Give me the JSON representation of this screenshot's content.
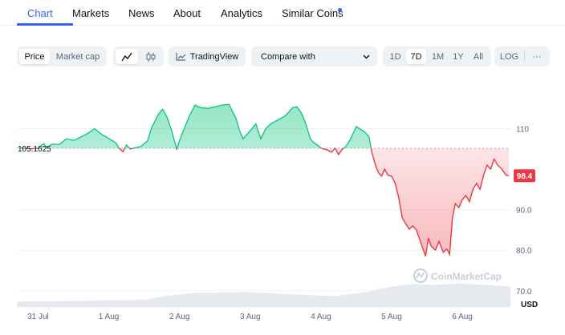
{
  "tabs": [
    {
      "label": "Chart",
      "active": true
    },
    {
      "label": "Markets"
    },
    {
      "label": "News"
    },
    {
      "label": "About"
    },
    {
      "label": "Analytics"
    },
    {
      "label": "Similar Coins"
    }
  ],
  "toolbar": {
    "price_label": "Price",
    "market_cap_label": "Market cap",
    "line_icon": "line-chart-icon",
    "candle_icon": "candlestick-icon",
    "tradingview_label": "TradingView",
    "compare_label": "Compare with",
    "ranges": [
      "1D",
      "7D",
      "1M",
      "1Y",
      "All"
    ],
    "active_range": "7D",
    "log_label": "LOG",
    "more_label": "···"
  },
  "chart_data": {
    "type": "area",
    "baseline": 105.1625,
    "baseline_label": "105.1625",
    "current_value": 98.4,
    "current_label": "98.4",
    "up_color": "#16c784",
    "down_color": "#ea3943",
    "currency_label": "USD",
    "watermark": "CoinMarketCap",
    "ylim": [
      66,
      120
    ],
    "y_ticks": [
      {
        "value": 110,
        "label": "110"
      },
      {
        "value": 90,
        "label": "90.0"
      },
      {
        "value": 80,
        "label": "80.0"
      },
      {
        "value": 70,
        "label": "70.0"
      }
    ],
    "x_ticks": [
      "31 Jul",
      "1 Aug",
      "2 Aug",
      "3 Aug",
      "4 Aug",
      "5 Aug",
      "6 Aug"
    ],
    "x_range_days": [
      -0.3,
      6.68
    ],
    "price": [
      [
        -0.25,
        105.3
      ],
      [
        -0.1,
        105.0
      ],
      [
        0.0,
        105.2
      ],
      [
        0.08,
        106.3
      ],
      [
        0.12,
        105.4
      ],
      [
        0.2,
        106.2
      ],
      [
        0.3,
        106.1
      ],
      [
        0.4,
        107.5
      ],
      [
        0.5,
        107.1
      ],
      [
        0.6,
        107.9
      ],
      [
        0.7,
        108.8
      ],
      [
        0.8,
        110.0
      ],
      [
        0.9,
        108.6
      ],
      [
        1.0,
        107.6
      ],
      [
        1.1,
        106.5
      ],
      [
        1.15,
        105.1
      ],
      [
        1.2,
        104.3
      ],
      [
        1.25,
        106.0
      ],
      [
        1.3,
        105.0
      ],
      [
        1.45,
        105.6
      ],
      [
        1.55,
        107.0
      ],
      [
        1.6,
        110.0
      ],
      [
        1.7,
        113.5
      ],
      [
        1.76,
        114.8
      ],
      [
        1.82,
        113.0
      ],
      [
        1.88,
        110.0
      ],
      [
        1.92,
        107.5
      ],
      [
        1.96,
        105.0
      ],
      [
        2.02,
        108.0
      ],
      [
        2.1,
        111.5
      ],
      [
        2.15,
        113.5
      ],
      [
        2.22,
        115.8
      ],
      [
        2.3,
        115.2
      ],
      [
        2.4,
        115.0
      ],
      [
        2.5,
        115.4
      ],
      [
        2.6,
        115.8
      ],
      [
        2.7,
        116.0
      ],
      [
        2.8,
        112.5
      ],
      [
        2.85,
        109.5
      ],
      [
        2.9,
        107.5
      ],
      [
        3.0,
        109.5
      ],
      [
        3.08,
        111.2
      ],
      [
        3.15,
        107.5
      ],
      [
        3.22,
        110.0
      ],
      [
        3.3,
        111.3
      ],
      [
        3.4,
        112.2
      ],
      [
        3.5,
        113.2
      ],
      [
        3.6,
        115.2
      ],
      [
        3.66,
        115.4
      ],
      [
        3.72,
        114.0
      ],
      [
        3.78,
        111.5
      ],
      [
        3.85,
        107.5
      ],
      [
        3.9,
        106.5
      ],
      [
        3.95,
        106.0
      ],
      [
        4.0,
        105.2
      ],
      [
        4.08,
        104.8
      ],
      [
        4.15,
        104.2
      ],
      [
        4.2,
        105.2
      ],
      [
        4.25,
        103.6
      ],
      [
        4.3,
        104.9
      ],
      [
        4.35,
        105.5
      ],
      [
        4.42,
        107.5
      ],
      [
        4.5,
        110.5
      ],
      [
        4.55,
        110.0
      ],
      [
        4.62,
        109.2
      ],
      [
        4.68,
        108.0
      ],
      [
        4.72,
        104.2
      ],
      [
        4.78,
        100.5
      ],
      [
        4.82,
        99.0
      ],
      [
        4.86,
        98.3
      ],
      [
        4.9,
        100.0
      ],
      [
        4.95,
        98.5
      ],
      [
        5.0,
        98.3
      ],
      [
        5.05,
        96.5
      ],
      [
        5.1,
        93.0
      ],
      [
        5.15,
        88.0
      ],
      [
        5.2,
        86.5
      ],
      [
        5.25,
        85.2
      ],
      [
        5.3,
        86.0
      ],
      [
        5.35,
        85.0
      ],
      [
        5.42,
        81.5
      ],
      [
        5.48,
        78.5
      ],
      [
        5.52,
        83.0
      ],
      [
        5.56,
        81.0
      ],
      [
        5.62,
        80.0
      ],
      [
        5.67,
        82.2
      ],
      [
        5.73,
        79.5
      ],
      [
        5.78,
        80.3
      ],
      [
        5.82,
        79.0
      ],
      [
        5.86,
        88.0
      ],
      [
        5.9,
        91.5
      ],
      [
        5.95,
        90.5
      ],
      [
        6.0,
        92.5
      ],
      [
        6.05,
        93.5
      ],
      [
        6.1,
        92.0
      ],
      [
        6.15,
        95.0
      ],
      [
        6.2,
        96.5
      ],
      [
        6.25,
        95.0
      ],
      [
        6.3,
        98.5
      ],
      [
        6.35,
        101.0
      ],
      [
        6.4,
        100.0
      ],
      [
        6.45,
        102.5
      ],
      [
        6.5,
        101.0
      ],
      [
        6.55,
        100.2
      ],
      [
        6.62,
        98.5
      ],
      [
        6.66,
        98.4
      ]
    ],
    "volume": [
      [
        -0.3,
        0.22
      ],
      [
        0.5,
        0.25
      ],
      [
        1.0,
        0.28
      ],
      [
        1.5,
        0.3
      ],
      [
        1.8,
        0.45
      ],
      [
        2.2,
        0.58
      ],
      [
        2.6,
        0.6
      ],
      [
        3.0,
        0.62
      ],
      [
        3.4,
        0.55
      ],
      [
        3.8,
        0.5
      ],
      [
        4.2,
        0.45
      ],
      [
        4.6,
        0.6
      ],
      [
        5.0,
        0.85
      ],
      [
        5.3,
        0.95
      ],
      [
        5.6,
        0.92
      ],
      [
        6.0,
        0.98
      ],
      [
        6.4,
        0.9
      ],
      [
        6.68,
        0.85
      ]
    ]
  }
}
